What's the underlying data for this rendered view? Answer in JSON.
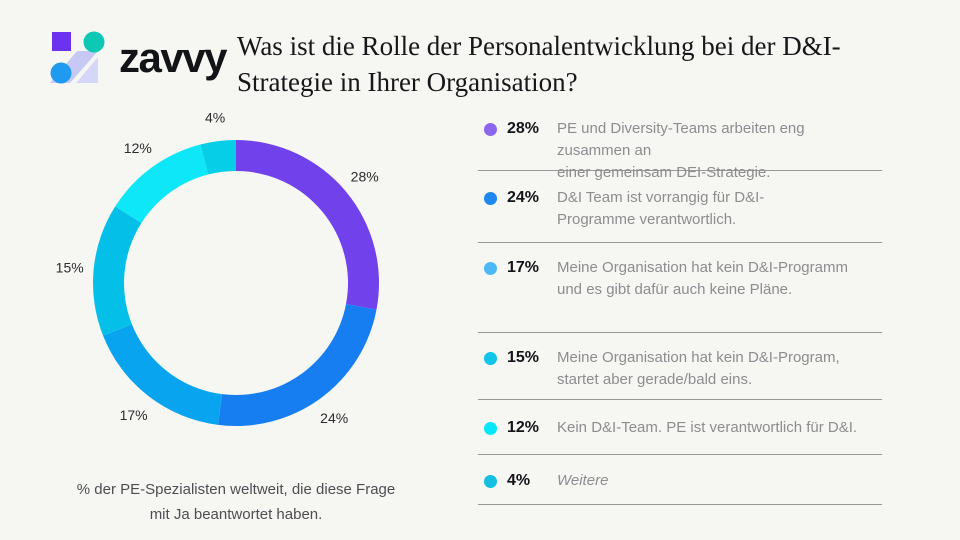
{
  "header": {
    "logo_text": "zavvy",
    "title_line1": "Was ist die Rolle der Personalentwicklung bei der D&I-",
    "title_line2": "Strategie in Ihrer Organisation?"
  },
  "chart_data": {
    "type": "pie",
    "subtype": "donut",
    "title": "Was ist die Rolle der Personalentwicklung bei der D&I-Strategie in Ihrer Organisation?",
    "note": "% der PE-Spezialisten weltweit, die diese Frage mit Ja beantwortet haben.",
    "unit": "%",
    "direction": "clockwise",
    "start_angle_deg": 0,
    "legend_position": "right",
    "categories": [
      "PE und Diversity-Teams arbeiten eng zusammen an einer gemeinsam DEI-Strategie.",
      "D&I Team ist vorrangig für D&I-Programme verantwortlich.",
      "Meine Organisation hat kein D&I-Programm und es gibt dafür auch keine Pläne.",
      "Meine Organisation hat kein D&I-Program, startet aber gerade/bald eins.",
      "Kein D&I-Team. PE ist verantwortlich für D&I.",
      "Weitere"
    ],
    "values": [
      28,
      24,
      17,
      15,
      12,
      4
    ],
    "slice_labels": [
      "28%",
      "24%",
      "17%",
      "15%",
      "12%",
      "4%"
    ],
    "colors": [
      "#7141EC",
      "#177EF2",
      "#09A4EF",
      "#04C0E9",
      "#0EE7F7",
      "#06CEE6"
    ]
  },
  "legend": {
    "items": [
      {
        "pct": "28%",
        "color": "#8D66EF",
        "lines": [
          "PE und Diversity-Teams arbeiten eng zusammen an",
          "einer gemeinsam DEI-Strategie."
        ]
      },
      {
        "pct": "24%",
        "color": "#1E88F0",
        "lines": [
          "D&I Team ist vorrangig für D&I-",
          "Programme verantwortlich."
        ]
      },
      {
        "pct": "17%",
        "color": "#4DB8F5",
        "lines": [
          "Meine Organisation hat kein D&I-Programm",
          "und es gibt dafür auch keine Pläne."
        ]
      },
      {
        "pct": "15%",
        "color": "#10C5EA",
        "lines": [
          "Meine Organisation hat kein D&I-Program,",
          "startet aber gerade/bald eins."
        ]
      },
      {
        "pct": "12%",
        "color": "#06E8F8",
        "lines": [
          "Kein D&I-Team. PE ist verantwortlich für D&I."
        ]
      },
      {
        "pct": "4%",
        "color": "#14BFE2",
        "lines": [
          "Weitere"
        ],
        "style": "italic"
      }
    ]
  },
  "footer": {
    "note_line1": "% der PE-Spezialisten weltweit, die diese Frage",
    "note_line2": "mit Ja beantwortet haben."
  }
}
